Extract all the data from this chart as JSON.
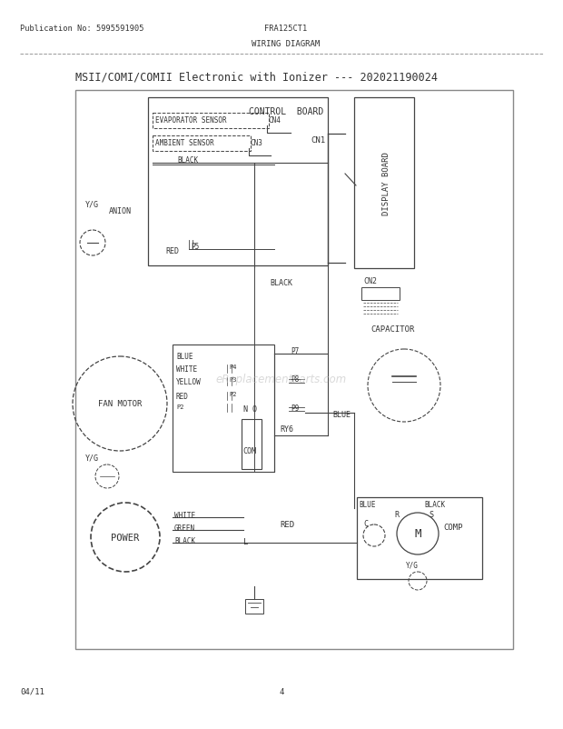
{
  "title": "MSII/COMI/COMII Electronic with Ionizer --- 202021190024",
  "pub_no": "Publication No: 5995591905",
  "model": "FRA125CT1",
  "diagram_title": "WIRING DIAGRAM",
  "date": "04/11",
  "page": "4",
  "watermark": "eReplacementParts.com",
  "bg_color": "#ffffff",
  "border_color": "#444444",
  "text_color": "#333333"
}
